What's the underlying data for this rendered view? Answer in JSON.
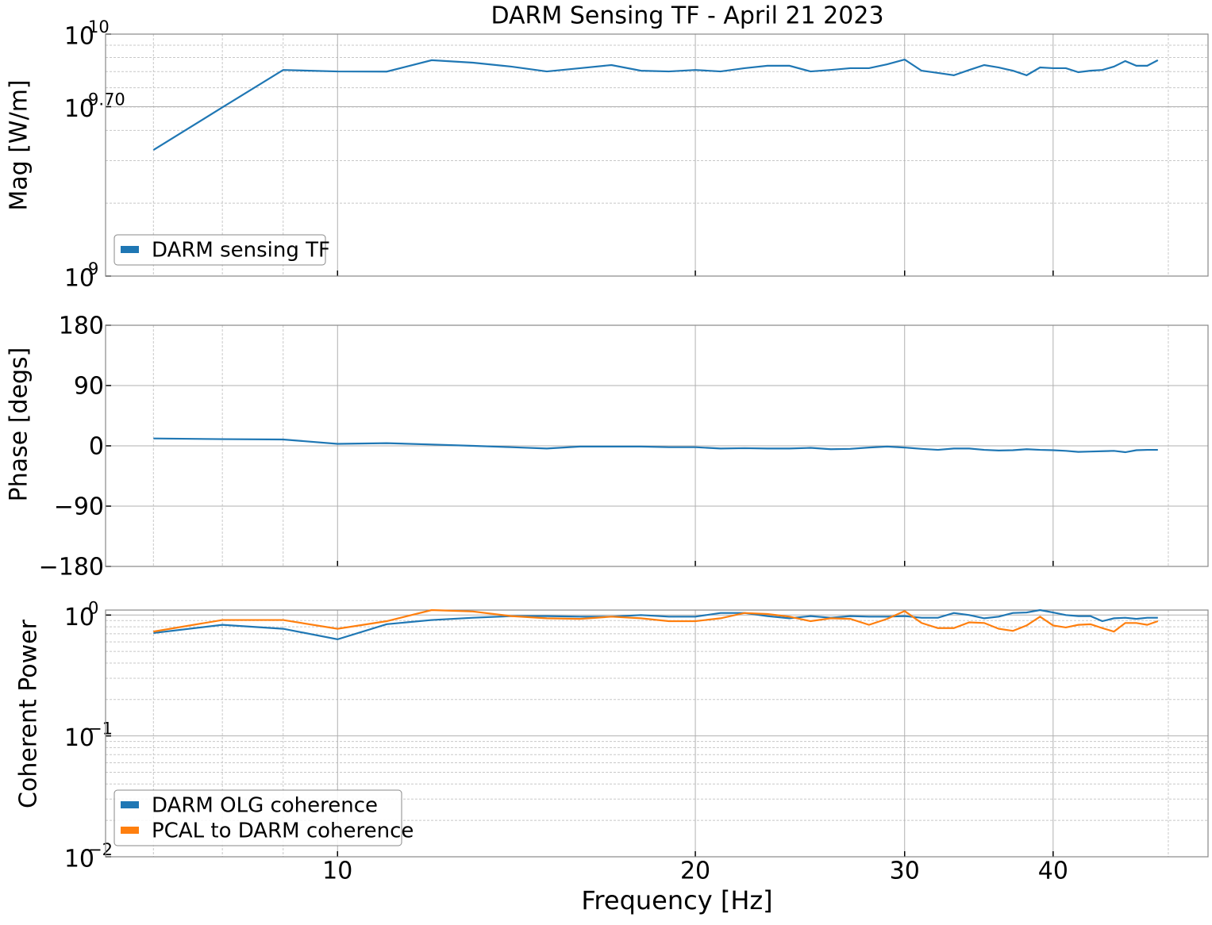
{
  "chart_data": [
    {
      "type": "line",
      "title": "DARM Sensing TF - April 21 2023",
      "ylabel": "Mag [W/m]",
      "xscale": "log",
      "yscale": "log",
      "grid": true,
      "legend": "lower left",
      "show_xticklabels": false,
      "x": [
        7,
        8,
        9,
        10,
        11,
        12,
        13,
        14,
        15,
        16,
        17,
        18,
        19,
        20,
        21,
        22,
        23,
        24,
        25,
        26,
        27,
        28,
        29,
        30,
        31,
        32,
        33,
        34,
        35,
        36,
        37,
        38,
        39,
        40,
        41,
        42,
        43,
        44,
        45,
        46,
        47,
        48,
        49
      ],
      "xlim": [
        6.38,
        54.0
      ],
      "xticks": [
        10,
        20,
        30,
        40
      ],
      "xminorticks": [
        7,
        8,
        9,
        50
      ],
      "ylim": [
        1000000000,
        10000000000
      ],
      "yticks": [
        {
          "value": 10000000000,
          "label": "10",
          "exponent": "10"
        },
        {
          "value": 5011872336,
          "label": "10",
          "exponent": "9.70"
        },
        {
          "value": 1000000000,
          "label": "10",
          "exponent": "9"
        }
      ],
      "yminorticks": [
        2000000000,
        3000000000,
        4000000000,
        5000000000,
        6000000000,
        7000000000,
        8000000000,
        9000000000
      ],
      "series": [
        {
          "name": "DARM sensing TF",
          "color": "#1f77b4",
          "values": [
            3320000000,
            4980000000,
            7110000000,
            7010000000,
            7000000000,
            7800000000,
            7620000000,
            7340000000,
            7010000000,
            7230000000,
            7450000000,
            7060000000,
            7010000000,
            7110000000,
            7010000000,
            7230000000,
            7400000000,
            7400000000,
            7010000000,
            7110000000,
            7230000000,
            7230000000,
            7500000000,
            7850000000,
            7060000000,
            6910000000,
            6760000000,
            7110000000,
            7450000000,
            7280000000,
            7060000000,
            6760000000,
            7280000000,
            7230000000,
            7230000000,
            6960000000,
            7060000000,
            7110000000,
            7340000000,
            7740000000,
            7400000000,
            7400000000,
            7800000000
          ]
        }
      ]
    },
    {
      "type": "line",
      "ylabel": "Phase [degs]",
      "xscale": "log",
      "grid": true,
      "show_xticklabels": false,
      "x": [
        7,
        8,
        9,
        10,
        11,
        12,
        13,
        14,
        15,
        16,
        17,
        18,
        19,
        20,
        21,
        22,
        23,
        24,
        25,
        26,
        27,
        28,
        29,
        30,
        31,
        32,
        33,
        34,
        35,
        36,
        37,
        38,
        39,
        40,
        41,
        42,
        43,
        44,
        45,
        46,
        47,
        48,
        49
      ],
      "xlim": [
        6.38,
        54.0
      ],
      "xticks": [
        10,
        20,
        30,
        40
      ],
      "xminorticks": [
        7,
        8,
        9,
        50
      ],
      "ylim": [
        -180,
        180
      ],
      "yticks": [
        180,
        90,
        0,
        {
          "value": -90,
          "label": "−90"
        },
        {
          "value": -180,
          "label": "−180"
        }
      ],
      "series": [
        {
          "name": "DARM sensing TF",
          "color": "#1f77b4",
          "values": [
            11,
            10,
            9.5,
            3,
            4,
            2,
            0,
            -2,
            -4,
            -1,
            -1,
            -1,
            -2,
            -2,
            -4,
            -3.5,
            -4,
            -4,
            -3,
            -5,
            -4.5,
            -2.5,
            -1,
            -2.5,
            -4.5,
            -6,
            -4,
            -4,
            -6,
            -7,
            -6.5,
            -5,
            -6,
            -6.5,
            -7.5,
            -9,
            -8.5,
            -8,
            -7.5,
            -9.5,
            -6.5,
            -6,
            -6
          ]
        }
      ]
    },
    {
      "type": "line",
      "ylabel": "Coherent Power",
      "xlabel": "Frequency [Hz]",
      "xscale": "log",
      "yscale": "log",
      "grid": true,
      "legend": "lower left",
      "show_xticklabels": true,
      "x": [
        7,
        8,
        9,
        10,
        11,
        12,
        13,
        14,
        15,
        16,
        17,
        18,
        19,
        20,
        21,
        22,
        23,
        24,
        25,
        26,
        27,
        28,
        29,
        30,
        31,
        32,
        33,
        34,
        35,
        36,
        37,
        38,
        39,
        40,
        41,
        42,
        43,
        44,
        45,
        46,
        47,
        48,
        49
      ],
      "xlim": [
        6.38,
        54.0
      ],
      "xticks": [
        10,
        20,
        30,
        40
      ],
      "xminorticks": [
        7,
        8,
        9,
        50
      ],
      "ylim": [
        0.01,
        1.1
      ],
      "yticks": [
        {
          "value": 1,
          "label": "10",
          "exponent": "0"
        },
        {
          "value": 0.1,
          "label": "10",
          "exponent": "−1"
        },
        {
          "value": 0.01,
          "label": "10",
          "exponent": "−2"
        }
      ],
      "yminorticks": [
        0.02,
        0.03,
        0.04,
        0.05,
        0.06,
        0.07,
        0.08,
        0.09,
        0.2,
        0.3,
        0.4,
        0.5,
        0.6,
        0.7,
        0.8,
        0.9
      ],
      "series": [
        {
          "name": "DARM OLG coherence",
          "color": "#1f77b4",
          "values": [
            0.71,
            0.83,
            0.77,
            0.63,
            0.84,
            0.91,
            0.95,
            0.98,
            0.98,
            0.97,
            0.97,
            1.0,
            0.97,
            0.97,
            1.04,
            1.04,
            0.98,
            0.94,
            0.98,
            0.95,
            0.98,
            0.97,
            0.97,
            0.98,
            0.95,
            0.95,
            1.04,
            1.0,
            0.94,
            0.97,
            1.04,
            1.05,
            1.1,
            1.05,
            1.0,
            0.98,
            0.98,
            0.89,
            0.94,
            0.95,
            0.93,
            0.95,
            0.95
          ]
        },
        {
          "name": "PCAL to DARM coherence",
          "color": "#ff7f0e",
          "values": [
            0.73,
            0.91,
            0.91,
            0.77,
            0.89,
            1.1,
            1.07,
            0.98,
            0.94,
            0.93,
            0.97,
            0.94,
            0.89,
            0.89,
            0.94,
            1.04,
            1.02,
            0.97,
            0.89,
            0.94,
            0.93,
            0.83,
            0.93,
            1.08,
            0.86,
            0.78,
            0.78,
            0.87,
            0.86,
            0.77,
            0.74,
            0.82,
            0.97,
            0.82,
            0.79,
            0.83,
            0.84,
            0.78,
            0.73,
            0.86,
            0.86,
            0.83,
            0.89
          ]
        }
      ]
    }
  ]
}
